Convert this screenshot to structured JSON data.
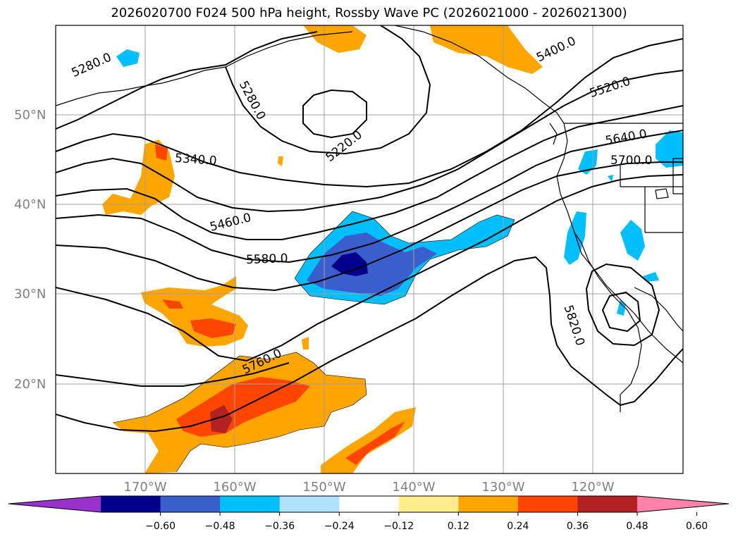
{
  "title": "2026020700 F024 500 hPa height, Rossby Wave PC (2026021000 - 2026021300)",
  "lat_ticks": [
    "50°N",
    "40°N",
    "30°N",
    "20°N"
  ],
  "lon_ticks": [
    "170°W",
    "160°W",
    "150°W",
    "140°W",
    "130°W",
    "120°W"
  ],
  "contour_labels": [
    "5280.0",
    "5280.0",
    "5220.0",
    "5340.0",
    "5400.0",
    "5520.0",
    "5460.0",
    "5640.0",
    "5700.0",
    "5580.0",
    "5760.0",
    "5820.0"
  ],
  "colorbar": {
    "tick_labels": [
      "−0.60",
      "−0.48",
      "−0.36",
      "−0.24",
      "−0.12",
      "0.12",
      "0.24",
      "0.36",
      "0.48",
      "0.60"
    ],
    "colors": [
      "#9932cc",
      "#00008b",
      "#3a5fcd",
      "#00bfff",
      "#b0e2ff",
      "#ffffff",
      "#ffec8b",
      "#ffa500",
      "#ff4500",
      "#b22222",
      "#ff82ab"
    ]
  }
}
